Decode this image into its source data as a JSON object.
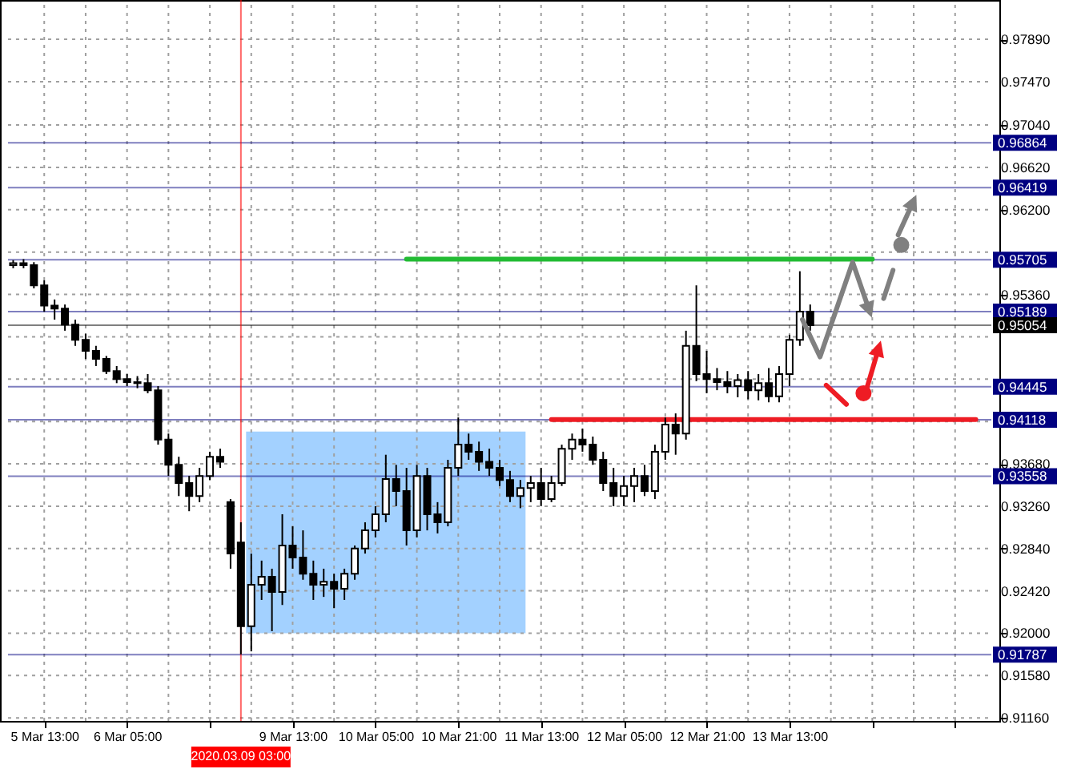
{
  "chart_data": {
    "type": "candlestick",
    "categories": [
      null,
      null,
      null,
      "5 Mar 13:00",
      null,
      null,
      null,
      null,
      null,
      null,
      null,
      "6 Mar 05:00",
      null,
      null,
      null,
      null,
      null,
      null,
      null,
      null,
      null,
      null,
      "2020.03.09 03:00",
      null,
      null,
      null,
      null,
      "9 Mar 13:00",
      null,
      null,
      null,
      null,
      null,
      null,
      null,
      "10 Mar 05:00",
      null,
      null,
      null,
      null,
      null,
      null,
      null,
      "10 Mar 21:00",
      null,
      null,
      null,
      null,
      null,
      null,
      null,
      "11 Mar 13:00",
      null,
      null,
      null,
      null,
      null,
      null,
      null,
      "12 Mar 05:00",
      null,
      null,
      null,
      null,
      null,
      null,
      null,
      "12 Mar 21:00",
      null,
      null,
      null,
      null,
      null,
      null,
      null,
      "13 Mar 13:00",
      null,
      null,
      null,
      null,
      null,
      null,
      null,
      null,
      null,
      null,
      null,
      null,
      null,
      null,
      null,
      null,
      null,
      null,
      null
    ],
    "ohlc": [
      [
        0.9565,
        0.957,
        0.9562,
        0.9567
      ],
      [
        0.9567,
        0.9571,
        0.9562,
        0.9565
      ],
      [
        0.9565,
        0.9568,
        0.9542,
        0.9545
      ],
      [
        0.9545,
        0.955,
        0.9519,
        0.9525
      ],
      [
        0.9525,
        0.9531,
        0.9511,
        0.9522
      ],
      [
        0.9522,
        0.9526,
        0.95,
        0.9506
      ],
      [
        0.9506,
        0.9511,
        0.9485,
        0.9491
      ],
      [
        0.9491,
        0.9497,
        0.9472,
        0.948
      ],
      [
        0.948,
        0.9485,
        0.9465,
        0.9472
      ],
      [
        0.9472,
        0.9475,
        0.9457,
        0.946
      ],
      [
        0.946,
        0.9465,
        0.9448,
        0.9452
      ],
      [
        0.9452,
        0.9457,
        0.9445,
        0.9449
      ],
      [
        0.9449,
        0.9455,
        0.9443,
        0.9448
      ],
      [
        0.9448,
        0.9457,
        0.9438,
        0.9441
      ],
      [
        0.9441,
        0.9445,
        0.9387,
        0.9392
      ],
      [
        0.9392,
        0.9398,
        0.9356,
        0.9367
      ],
      [
        0.9367,
        0.9375,
        0.9336,
        0.9349
      ],
      [
        0.9349,
        0.9356,
        0.9321,
        0.9336
      ],
      [
        0.9336,
        0.9364,
        0.933,
        0.9356
      ],
      [
        0.9356,
        0.938,
        0.9352,
        0.9375
      ],
      [
        0.9375,
        0.9383,
        0.9364,
        0.937
      ],
      [
        0.933,
        0.9333,
        0.9264,
        0.9279
      ],
      [
        0.929,
        0.931,
        0.9179,
        0.9207
      ],
      [
        0.9207,
        0.9279,
        0.9182,
        0.9248
      ],
      [
        0.9248,
        0.9272,
        0.9233,
        0.9256
      ],
      [
        0.9256,
        0.9264,
        0.9202,
        0.9241
      ],
      [
        0.9241,
        0.9318,
        0.9228,
        0.9287
      ],
      [
        0.9287,
        0.9306,
        0.9264,
        0.9275
      ],
      [
        0.9275,
        0.9302,
        0.9253,
        0.9259
      ],
      [
        0.9259,
        0.9272,
        0.9233,
        0.9248
      ],
      [
        0.9248,
        0.9264,
        0.9236,
        0.9251
      ],
      [
        0.9251,
        0.9259,
        0.9225,
        0.9244
      ],
      [
        0.9244,
        0.9264,
        0.9233,
        0.9259
      ],
      [
        0.9259,
        0.9287,
        0.9253,
        0.9284
      ],
      [
        0.9284,
        0.931,
        0.9279,
        0.9302
      ],
      [
        0.9302,
        0.9326,
        0.9295,
        0.9318
      ],
      [
        0.9318,
        0.9377,
        0.931,
        0.9353
      ],
      [
        0.9353,
        0.9367,
        0.9326,
        0.9341
      ],
      [
        0.9341,
        0.9364,
        0.9287,
        0.9302
      ],
      [
        0.9302,
        0.9367,
        0.9295,
        0.9356
      ],
      [
        0.9356,
        0.9364,
        0.9302,
        0.9318
      ],
      [
        0.9318,
        0.933,
        0.9299,
        0.931
      ],
      [
        0.931,
        0.9372,
        0.9306,
        0.9364
      ],
      [
        0.9364,
        0.9414,
        0.9356,
        0.9387
      ],
      [
        0.9387,
        0.9398,
        0.9372,
        0.938
      ],
      [
        0.938,
        0.939,
        0.9361,
        0.937
      ],
      [
        0.937,
        0.9383,
        0.9356,
        0.9364
      ],
      [
        0.9364,
        0.9372,
        0.9346,
        0.9352
      ],
      [
        0.9352,
        0.9361,
        0.933,
        0.9336
      ],
      [
        0.9336,
        0.9352,
        0.9324,
        0.9344
      ],
      [
        0.9344,
        0.9356,
        0.933,
        0.9349
      ],
      [
        0.9349,
        0.9364,
        0.9326,
        0.9333
      ],
      [
        0.9333,
        0.9356,
        0.933,
        0.9349
      ],
      [
        0.9349,
        0.9387,
        0.9346,
        0.9383
      ],
      [
        0.9383,
        0.9398,
        0.9372,
        0.9392
      ],
      [
        0.9392,
        0.9403,
        0.938,
        0.9387
      ],
      [
        0.9387,
        0.9395,
        0.9367,
        0.9372
      ],
      [
        0.9372,
        0.938,
        0.9341,
        0.9349
      ],
      [
        0.9349,
        0.9364,
        0.9326,
        0.9336
      ],
      [
        0.9336,
        0.9356,
        0.9326,
        0.9346
      ],
      [
        0.9346,
        0.9364,
        0.933,
        0.9356
      ],
      [
        0.9356,
        0.9367,
        0.9336,
        0.9341
      ],
      [
        0.9341,
        0.9387,
        0.9333,
        0.938
      ],
      [
        0.938,
        0.9414,
        0.9372,
        0.9407
      ],
      [
        0.9407,
        0.9418,
        0.9377,
        0.9398
      ],
      [
        0.9398,
        0.95,
        0.9392,
        0.9485
      ],
      [
        0.9485,
        0.9545,
        0.945,
        0.9457
      ],
      [
        0.9457,
        0.948,
        0.9438,
        0.9452
      ],
      [
        0.9452,
        0.9463,
        0.9441,
        0.9449
      ],
      [
        0.9449,
        0.946,
        0.9438,
        0.9445
      ],
      [
        0.9445,
        0.9457,
        0.9434,
        0.9451
      ],
      [
        0.9451,
        0.946,
        0.9432,
        0.9441
      ],
      [
        0.9441,
        0.9457,
        0.9431,
        0.9448
      ],
      [
        0.9448,
        0.9463,
        0.9429,
        0.9435
      ],
      [
        0.9435,
        0.9465,
        0.9429,
        0.9457
      ],
      [
        0.9457,
        0.9496,
        0.9445,
        0.9491
      ],
      [
        0.9491,
        0.9559,
        0.9485,
        0.9519
      ],
      [
        0.9519,
        0.9526,
        0.95,
        0.95054
      ],
      null,
      null,
      null,
      null,
      null,
      null,
      null,
      null,
      null,
      null,
      null,
      null,
      null,
      null,
      null,
      null,
      null
    ],
    "series": [
      {
        "type": "line",
        "color": "#22bb33",
        "values": [
          null,
          null,
          null,
          null,
          null,
          null,
          null,
          null,
          null,
          null,
          null,
          null,
          null,
          null,
          null,
          null,
          null,
          null,
          null,
          null,
          null,
          null,
          null,
          null,
          null,
          null,
          null,
          null,
          null,
          null,
          null,
          null,
          null,
          null,
          null,
          null,
          null,
          null,
          0.9571,
          0.9571,
          0.9571,
          0.9571,
          0.9571,
          0.9571,
          0.9571,
          0.9571,
          0.9571,
          0.9571,
          0.9571,
          0.9571,
          0.9571,
          0.9571,
          0.9571,
          0.9571,
          0.9571,
          0.9571,
          0.9571,
          0.9571,
          0.9571,
          0.9571,
          0.9571,
          0.9571,
          0.9571,
          0.9571,
          0.9571,
          0.9571,
          0.9571,
          0.9571,
          0.9571,
          0.9571,
          0.9571,
          0.9571,
          0.9571,
          0.9571,
          0.9571,
          0.9571,
          0.9571,
          0.9571,
          0.9571,
          0.9571,
          0.9571,
          0.9571,
          0.9571,
          0.9571,
          null,
          null,
          null,
          null,
          null,
          null,
          null,
          null,
          null,
          null,
          null
        ]
      },
      {
        "type": "line",
        "color": "#ee1c24",
        "values": [
          null,
          null,
          null,
          null,
          null,
          null,
          null,
          null,
          null,
          null,
          null,
          null,
          null,
          null,
          null,
          null,
          null,
          null,
          null,
          null,
          null,
          null,
          null,
          null,
          null,
          null,
          null,
          null,
          null,
          null,
          null,
          null,
          null,
          null,
          null,
          null,
          null,
          null,
          null,
          null,
          null,
          null,
          null,
          null,
          null,
          null,
          null,
          null,
          null,
          null,
          null,
          null,
          0.9412,
          0.9412,
          0.9412,
          0.9412,
          0.9412,
          0.9412,
          0.9412,
          0.9412,
          0.9412,
          0.9412,
          0.9412,
          0.9412,
          0.9412,
          0.9412,
          0.9412,
          0.9412,
          0.9412,
          0.9412,
          0.9412,
          0.9412,
          0.9412,
          0.9412,
          0.9412,
          0.9412,
          0.9412,
          0.9412,
          0.9412,
          0.9412,
          0.9412,
          0.9412,
          0.9412,
          0.9412,
          0.9412,
          0.9412,
          0.9412,
          0.9412,
          0.9412,
          0.9412,
          0.9412,
          0.9412,
          0.9412,
          0.9412,
          null
        ]
      }
    ],
    "ylim": [
      0.9113,
      0.9828
    ],
    "yticks": [
      {
        "value": 0.9789,
        "label": "0.97890"
      },
      {
        "value": 0.9747,
        "label": "0.97470"
      },
      {
        "value": 0.9704,
        "label": "0.97040"
      },
      {
        "value": 0.9662,
        "label": "0.96620"
      },
      {
        "value": 0.962,
        "label": "0.96200"
      },
      {
        "value": 0.9578,
        "label": null
      },
      {
        "value": 0.9536,
        "label": "0.95360"
      },
      {
        "value": 0.9494,
        "label": null
      },
      {
        "value": 0.9452,
        "label": null
      },
      {
        "value": 0.941,
        "label": null
      },
      {
        "value": 0.9368,
        "label": "0.93680"
      },
      {
        "value": 0.9326,
        "label": "0.93260"
      },
      {
        "value": 0.9284,
        "label": "0.92840"
      },
      {
        "value": 0.9242,
        "label": "0.92420"
      },
      {
        "value": 0.92,
        "label": "0.92000"
      },
      {
        "value": 0.9158,
        "label": "0.91580"
      },
      {
        "value": 0.9116,
        "label": "0.91160"
      }
    ],
    "ref_lines": [
      {
        "axis": "y",
        "value": 0.96864,
        "label": "0.96864",
        "color": "#000080"
      },
      {
        "axis": "y",
        "value": 0.96419,
        "label": "0.96419",
        "color": "#000080"
      },
      {
        "axis": "y",
        "value": 0.95705,
        "label": "0.95705",
        "color": "#000080"
      },
      {
        "axis": "y",
        "value": 0.95189,
        "label": "0.95189",
        "color": "#000080"
      },
      {
        "axis": "y",
        "value": 0.95054,
        "label": "0.95054",
        "color": "#000000"
      },
      {
        "axis": "y",
        "value": 0.94445,
        "label": "0.94445",
        "color": "#000080"
      },
      {
        "axis": "y",
        "value": 0.94118,
        "label": "0.94118",
        "color": "#000080"
      },
      {
        "axis": "y",
        "value": 0.93558,
        "label": "0.93558",
        "color": "#000080"
      },
      {
        "axis": "y",
        "value": 0.91787,
        "label": "0.91787",
        "color": "#000080"
      },
      {
        "axis": "x",
        "value": "2020.03.09 03:00",
        "color": "#ff0000"
      }
    ],
    "grid": true
  }
}
